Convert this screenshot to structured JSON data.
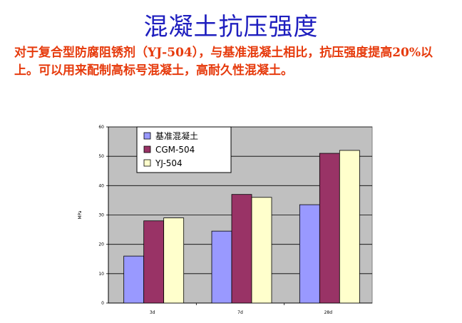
{
  "slide": {
    "title": "混凝土抗压强度",
    "body": "对于复合型防腐阻锈剂（YJ-504），与基准混凝土相比，抗压强度提高20%以上。可以用来配制高标号混凝土，高耐久性混凝土。"
  },
  "chart_data": {
    "type": "bar",
    "categories": [
      "3d",
      "7d",
      "28d"
    ],
    "series": [
      {
        "name": "基准混凝土",
        "values": [
          16,
          24.5,
          33.5
        ],
        "color": "#9999ff"
      },
      {
        "name": "CGM-504",
        "values": [
          28,
          37,
          51
        ],
        "color": "#993366"
      },
      {
        "name": "YJ-504",
        "values": [
          29,
          36,
          52
        ],
        "color": "#ffffcc"
      }
    ],
    "ylabel": "MPa",
    "ylim": [
      0,
      60
    ],
    "yticks": [
      "0",
      "10",
      "20",
      "30",
      "40",
      "50",
      "60"
    ],
    "grid": true,
    "plot_background": "#c0c0c0",
    "legend_position": "top-left"
  }
}
